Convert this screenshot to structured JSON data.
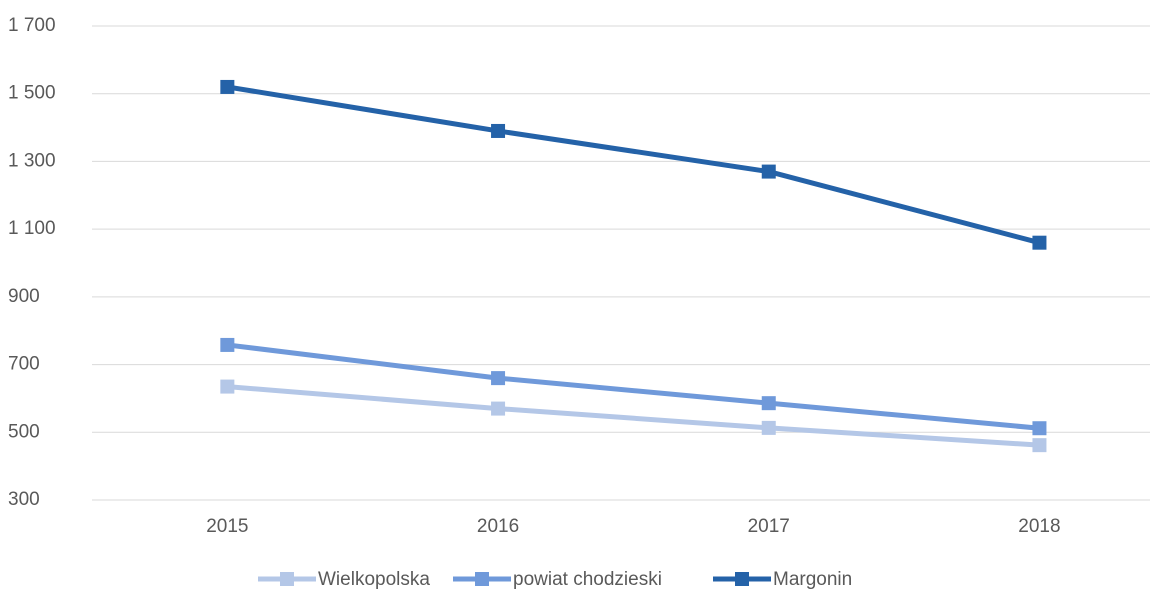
{
  "chart_data": {
    "type": "line",
    "categories": [
      "2015",
      "2016",
      "2017",
      "2018"
    ],
    "series": [
      {
        "name": "Wielkopolska",
        "color": "#b4c7e7",
        "values": [
          635,
          570,
          513,
          462
        ]
      },
      {
        "name": "powiat chodzieski",
        "color": "#6f99da",
        "values": [
          758,
          660,
          586,
          512
        ]
      },
      {
        "name": "Margonin",
        "color": "#2462a8",
        "values": [
          1520,
          1390,
          1270,
          1060
        ]
      }
    ],
    "ylim": [
      300,
      1700
    ],
    "yticks": [
      300,
      500,
      700,
      900,
      {
        "value": 1100,
        "label": "1 100"
      },
      {
        "value": 1300,
        "label": "1 300"
      },
      {
        "value": 1500,
        "label": "1 500"
      },
      {
        "value": 1700,
        "label": "1 700"
      }
    ],
    "grid": true,
    "legend": "bottom"
  }
}
